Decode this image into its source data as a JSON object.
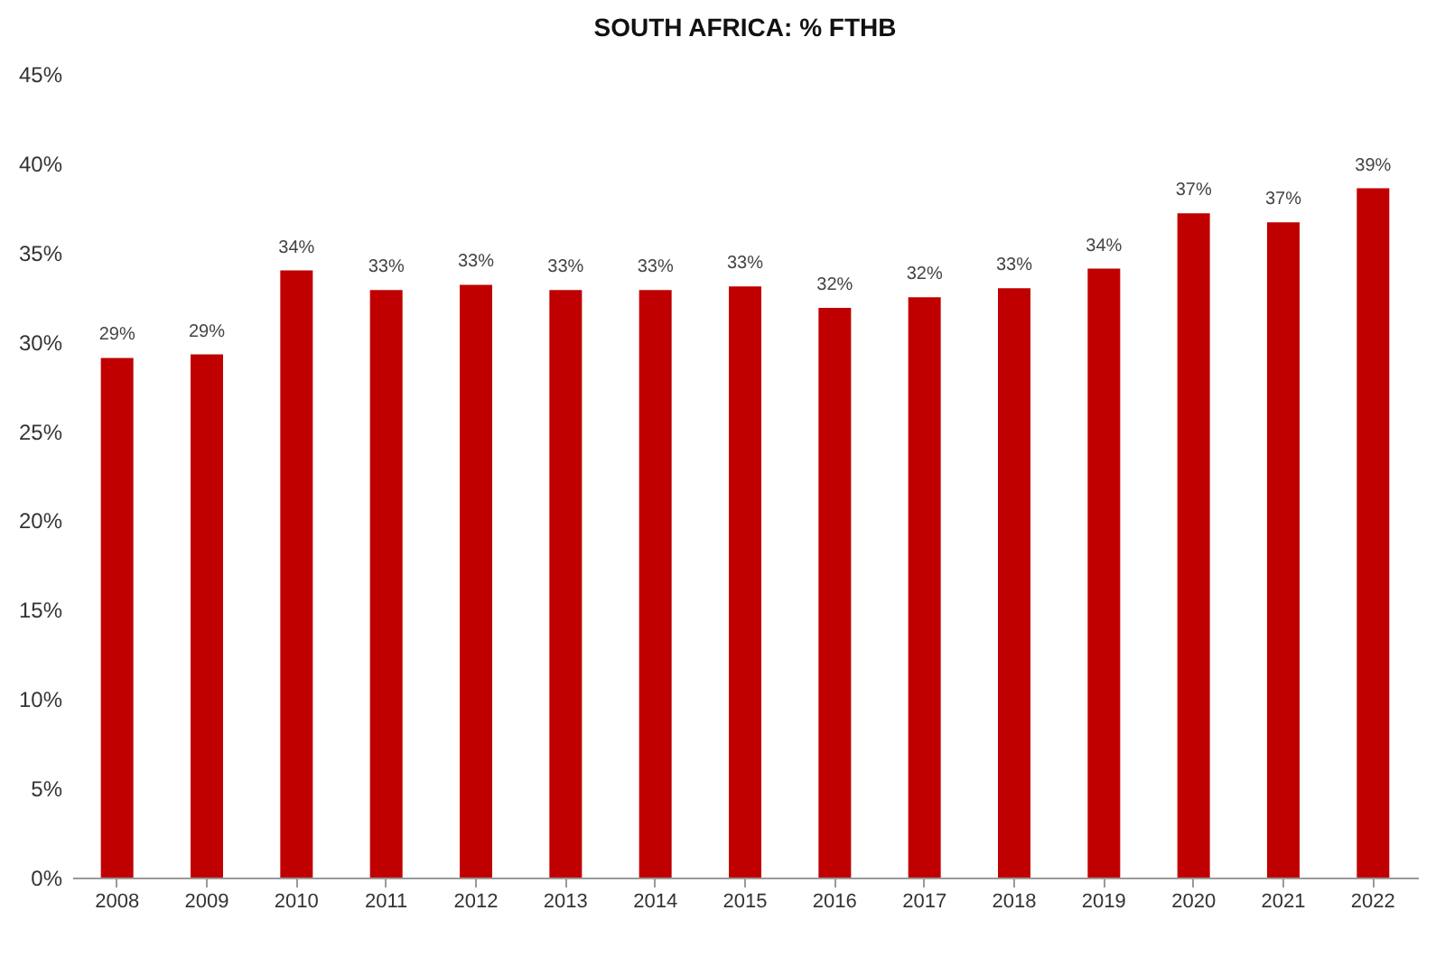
{
  "chart_data": {
    "type": "bar",
    "title": "SOUTH AFRICA: % FTHB",
    "categories": [
      "2008",
      "2009",
      "2010",
      "2011",
      "2012",
      "2013",
      "2014",
      "2015",
      "2016",
      "2017",
      "2018",
      "2019",
      "2020",
      "2021",
      "2022"
    ],
    "values": [
      29.1,
      29.3,
      34.0,
      32.9,
      33.2,
      32.9,
      32.9,
      33.1,
      31.9,
      32.5,
      33.0,
      34.1,
      37.2,
      36.7,
      38.6
    ],
    "value_labels": [
      "29%",
      "29%",
      "34%",
      "33%",
      "33%",
      "33%",
      "33%",
      "33%",
      "32%",
      "32%",
      "33%",
      "34%",
      "37%",
      "37%",
      "39%"
    ],
    "color": "#c00000",
    "ylim": [
      0,
      45
    ],
    "yticks": [
      {
        "value": 0,
        "label": "0%"
      },
      {
        "value": 5,
        "label": "5%"
      },
      {
        "value": 10,
        "label": "10%"
      },
      {
        "value": 15,
        "label": "15%"
      },
      {
        "value": 20,
        "label": "20%"
      },
      {
        "value": 25,
        "label": "25%"
      },
      {
        "value": 30,
        "label": "30%"
      },
      {
        "value": 35,
        "label": "35%"
      },
      {
        "value": 40,
        "label": "40%"
      },
      {
        "value": 45,
        "label": "45%"
      }
    ]
  }
}
